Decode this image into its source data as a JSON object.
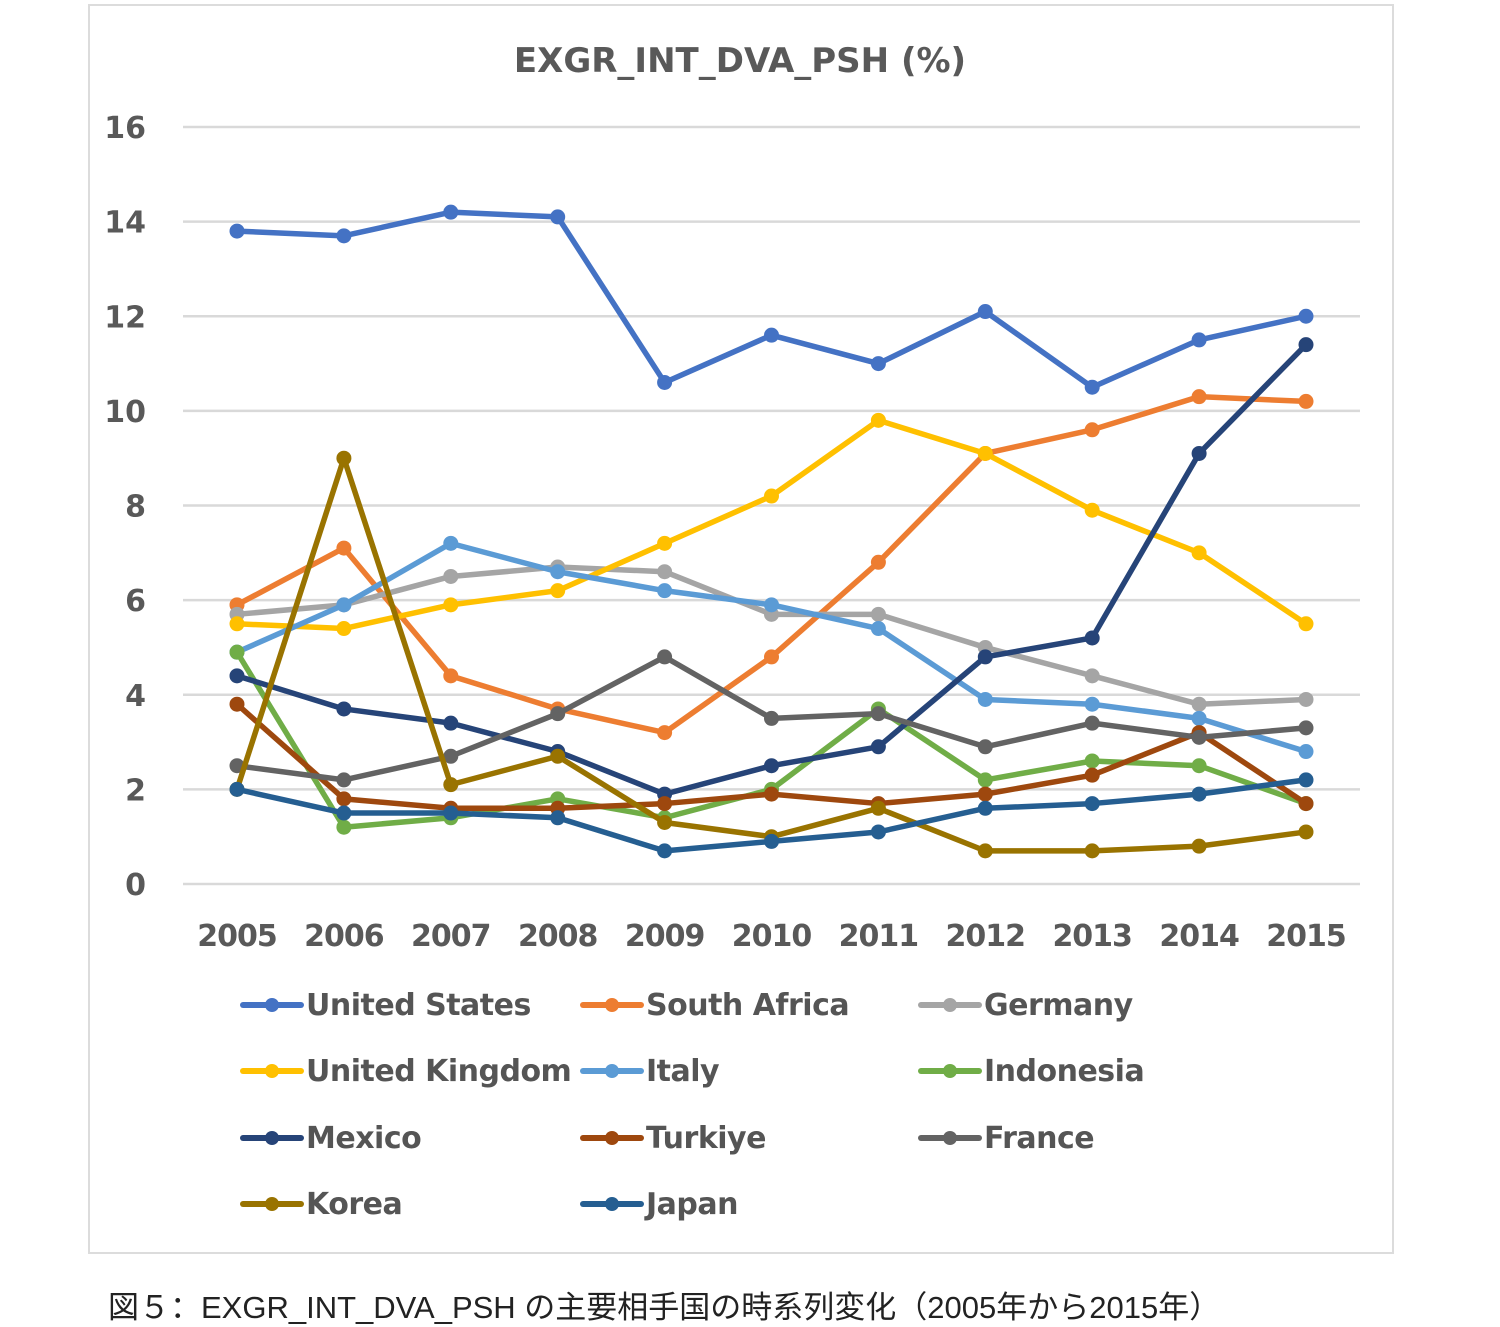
{
  "caption": "図５：EXGR_INT_DVA_PSH の主要相手国の時系列変化（2005年から2015年）",
  "chart_data": {
    "type": "line",
    "title": "EXGR_INT_DVA_PSH (%)",
    "xlabel": "",
    "ylabel": "",
    "x": [
      "2005",
      "2006",
      "2007",
      "2008",
      "2009",
      "2010",
      "2011",
      "2012",
      "2013",
      "2014",
      "2015"
    ],
    "ylim": [
      0,
      16
    ],
    "yticks": [
      "0",
      "2",
      "4",
      "6",
      "8",
      "10",
      "12",
      "14",
      "16"
    ],
    "grid": true,
    "legend_position": "bottom",
    "series": [
      {
        "name": "United States",
        "color": "#4472c4",
        "values": [
          13.8,
          13.7,
          14.2,
          14.1,
          10.6,
          11.6,
          11.0,
          12.1,
          10.5,
          11.5,
          12.0
        ]
      },
      {
        "name": "South Africa",
        "color": "#ed7d31",
        "values": [
          5.9,
          7.1,
          4.4,
          3.7,
          3.2,
          4.8,
          6.8,
          9.1,
          9.6,
          10.3,
          10.2
        ]
      },
      {
        "name": "Germany",
        "color": "#a5a5a5",
        "values": [
          5.7,
          5.9,
          6.5,
          6.7,
          6.6,
          5.7,
          5.7,
          5.0,
          4.4,
          3.8,
          3.9
        ]
      },
      {
        "name": "United Kingdom",
        "color": "#ffc000",
        "values": [
          5.5,
          5.4,
          5.9,
          6.2,
          7.2,
          8.2,
          9.8,
          9.1,
          7.9,
          7.0,
          5.5
        ]
      },
      {
        "name": "Italy",
        "color": "#5b9bd5",
        "values": [
          4.9,
          5.9,
          7.2,
          6.6,
          6.2,
          5.9,
          5.4,
          3.9,
          3.8,
          3.5,
          2.8
        ]
      },
      {
        "name": "Indonesia",
        "color": "#70ad47",
        "values": [
          4.9,
          1.2,
          1.4,
          1.8,
          1.4,
          2.0,
          3.7,
          2.2,
          2.6,
          2.5,
          1.7
        ]
      },
      {
        "name": "Mexico",
        "color": "#264478",
        "values": [
          4.4,
          3.7,
          3.4,
          2.8,
          1.9,
          2.5,
          2.9,
          4.8,
          5.2,
          9.1,
          11.4
        ]
      },
      {
        "name": "Turkiye",
        "color": "#9e480e",
        "values": [
          3.8,
          1.8,
          1.6,
          1.6,
          1.7,
          1.9,
          1.7,
          1.9,
          2.3,
          3.2,
          1.7
        ]
      },
      {
        "name": "France",
        "color": "#636363",
        "values": [
          2.5,
          2.2,
          2.7,
          3.6,
          4.8,
          3.5,
          3.6,
          2.9,
          3.4,
          3.1,
          3.3
        ]
      },
      {
        "name": "Korea",
        "color": "#997300",
        "values": [
          2.0,
          9.0,
          2.1,
          2.7,
          1.3,
          1.0,
          1.6,
          0.7,
          0.7,
          0.8,
          1.1
        ]
      },
      {
        "name": "Japan",
        "color": "#255e91",
        "values": [
          2.0,
          1.5,
          1.5,
          1.4,
          0.7,
          0.9,
          1.1,
          1.6,
          1.7,
          1.9,
          2.2
        ]
      }
    ]
  }
}
